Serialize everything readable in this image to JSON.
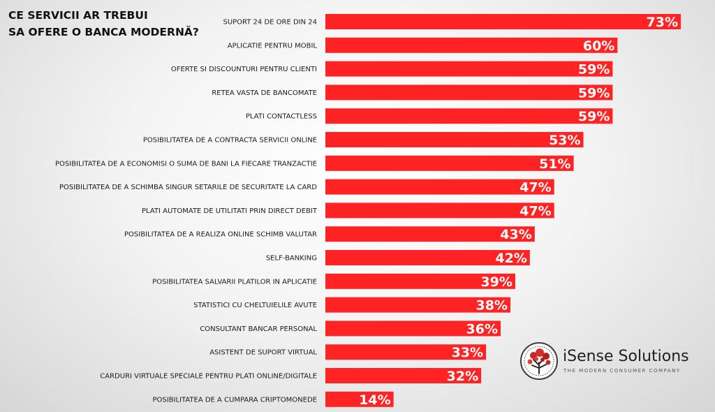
{
  "chart_data": {
    "type": "bar",
    "orientation": "horizontal",
    "title_lines": [
      "CE SERVICII AR TREBUI",
      "SA OFERE O BANCA MODERNĂ?"
    ],
    "categories": [
      "SUPORT 24 DE ORE DIN 24",
      "APLICATIE PENTRU MOBIL",
      "OFERTE SI DISCOUNTURI PENTRU CLIENTI",
      "RETEA VASTA DE BANCOMATE",
      "PLATI CONTACTLESS",
      "POSIBILITATEA DE A CONTRACTA SERVICII ONLINE",
      "POSIBILITATEA DE A ECONOMISI O SUMA DE BANI LA FIECARE TRANZACTIE",
      "POSIBILITATEA DE A SCHIMBA SINGUR SETARILE DE SECURITATE LA CARD",
      "PLATI AUTOMATE DE UTILITATI PRIN DIRECT DEBIT",
      "POSIBILITATEA DE A REALIZA ONLINE SCHIMB VALUTAR",
      "SELF-BANKING",
      "POSIBILITATEA SALVARII PLATILOR IN APLICATIE",
      "STATISTICI CU CHELTUIELILE AVUTE",
      "CONSULTANT BANCAR PERSONAL",
      "ASISTENT DE SUPORT VIRTUAL",
      "CARDURI VIRTUALE SPECIALE PENTRU PLATI ONLINE/DIGITALE",
      "POSIBILITATEA DE A CUMPARA CRIPTOMONEDE"
    ],
    "values": [
      73,
      60,
      59,
      59,
      59,
      53,
      51,
      47,
      47,
      43,
      42,
      39,
      38,
      36,
      33,
      32,
      14
    ],
    "value_labels": [
      "73%",
      "60%",
      "59%",
      "59%",
      "59%",
      "53%",
      "51%",
      "47%",
      "47%",
      "43%",
      "42%",
      "39%",
      "38%",
      "36%",
      "33%",
      "32%",
      "14%"
    ],
    "xlim": [
      0,
      73
    ],
    "grid": false,
    "legend": "none",
    "bar_color": "#ff2323",
    "label_color": "#ffffff"
  },
  "branding": {
    "name": "iSense Solutions",
    "tagline": "THE MODERN CONSUMER COMPANY",
    "accent": "#c62828"
  }
}
